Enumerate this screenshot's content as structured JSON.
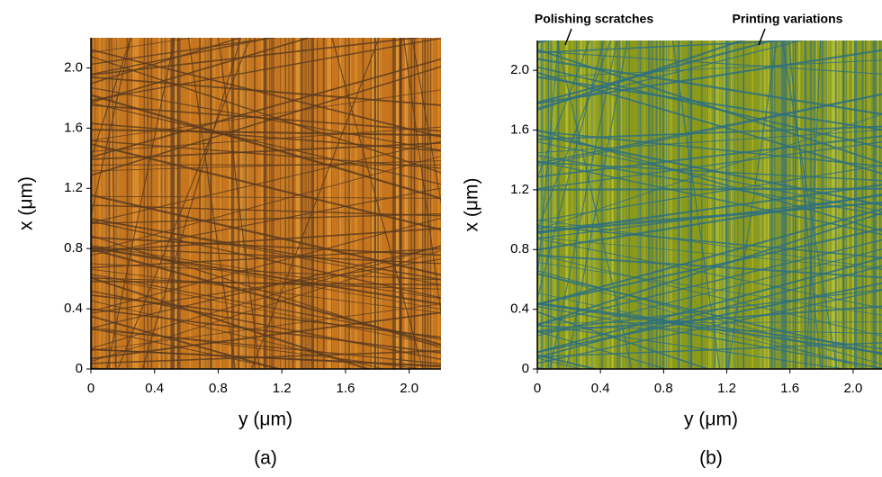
{
  "chart_data": [
    {
      "type": "image",
      "panel_label": "(a)",
      "xlabel": "y (μm)",
      "ylabel": "x (μm)",
      "xlim": [
        0,
        2.2
      ],
      "ylim": [
        0,
        2.2
      ],
      "xticks": [
        0,
        0.4,
        0.8,
        1.2,
        1.6,
        {
          "value": 2,
          "label": "2.0"
        }
      ],
      "yticks": [
        0,
        0.4,
        0.8,
        1.2,
        1.6,
        {
          "value": 2,
          "label": "2.0"
        }
      ],
      "palette": [
        "#c8761e",
        "#e9a440",
        "#5a3a1e"
      ]
    },
    {
      "type": "image",
      "panel_label": "(b)",
      "xlabel": "y (μm)",
      "ylabel": "x (μm)",
      "xlim": [
        0,
        2.2
      ],
      "ylim": [
        0,
        2.2
      ],
      "xticks": [
        0,
        0.4,
        0.8,
        1.2,
        1.6,
        {
          "value": 2,
          "label": "2.0"
        }
      ],
      "yticks": [
        0,
        0.4,
        0.8,
        1.2,
        1.6,
        {
          "value": 2,
          "label": "2.0"
        }
      ],
      "palette": [
        "#8c9a1c",
        "#c3cc3a",
        "#2c6f82"
      ],
      "annotations": [
        "Polishing scratches",
        "Printing variations"
      ]
    }
  ]
}
